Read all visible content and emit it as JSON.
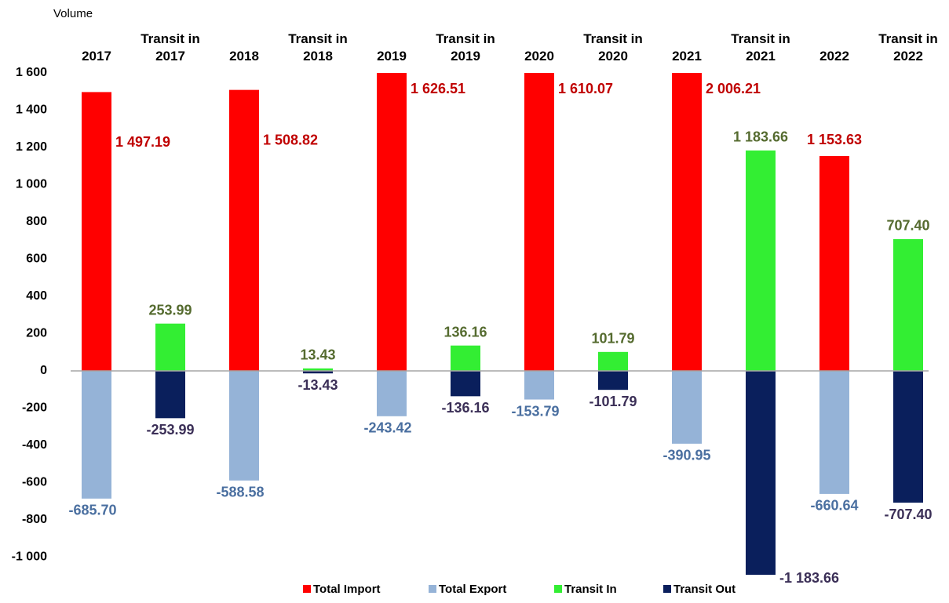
{
  "chart_data": {
    "type": "bar",
    "y_label": "Volume",
    "categories": [
      "2017",
      "Transit in 2017",
      "2018",
      "Transit in 2018",
      "2019",
      "Transit in 2019",
      "2020",
      "Transit in 2020",
      "2021",
      "Transit in 2021",
      "2022",
      "Transit in 2022"
    ],
    "series": [
      {
        "name": "Total Import",
        "color": "#ff0000",
        "values": [
          1497.19,
          null,
          1508.82,
          null,
          1626.51,
          null,
          1610.07,
          null,
          2006.21,
          null,
          1153.63,
          null
        ],
        "value_labels": [
          "1 497.19",
          null,
          "1 508.82",
          null,
          "1 626.51",
          null,
          "1 610.07",
          null,
          "2 006.21",
          null,
          "1 153.63",
          null
        ]
      },
      {
        "name": "Total Export",
        "color": "#95b3d7",
        "values": [
          -685.7,
          null,
          -588.58,
          null,
          -243.42,
          null,
          -153.79,
          null,
          -390.95,
          null,
          -660.64,
          null
        ],
        "value_labels": [
          "-685.70",
          null,
          "-588.58",
          null,
          "-243.42",
          null,
          "-153.79",
          null,
          "-390.95",
          null,
          "-660.64",
          null
        ]
      },
      {
        "name": "Transit In",
        "color": "#33ee33",
        "values": [
          null,
          253.99,
          null,
          13.43,
          null,
          136.16,
          null,
          101.79,
          null,
          1183.66,
          null,
          707.4
        ],
        "value_labels": [
          null,
          "253.99",
          null,
          "13.43",
          null,
          "136.16",
          null,
          "101.79",
          null,
          "1 183.66",
          null,
          "707.40"
        ]
      },
      {
        "name": "Transit Out",
        "color": "#0a1f5c",
        "values": [
          null,
          -253.99,
          null,
          -13.43,
          null,
          -136.16,
          null,
          -101.79,
          null,
          -1183.66,
          null,
          -707.4
        ],
        "value_labels": [
          null,
          "-253.99",
          null,
          "-13.43",
          null,
          "-136.16",
          null,
          "-101.79",
          null,
          "-1 183.66",
          null,
          "-707.40"
        ]
      }
    ],
    "ylim": [
      -1000,
      1600
    ],
    "yticks": [
      {
        "value": -1000,
        "label": "-1 000"
      },
      -800,
      -600,
      -400,
      -200,
      0,
      200,
      400,
      600,
      800,
      {
        "value": 1000,
        "label": "1 000"
      },
      {
        "value": 1200,
        "label": "1 200"
      },
      {
        "value": 1400,
        "label": "1 400"
      },
      {
        "value": 1600,
        "label": "1 600"
      }
    ],
    "grid": false,
    "legend": "bottom"
  }
}
